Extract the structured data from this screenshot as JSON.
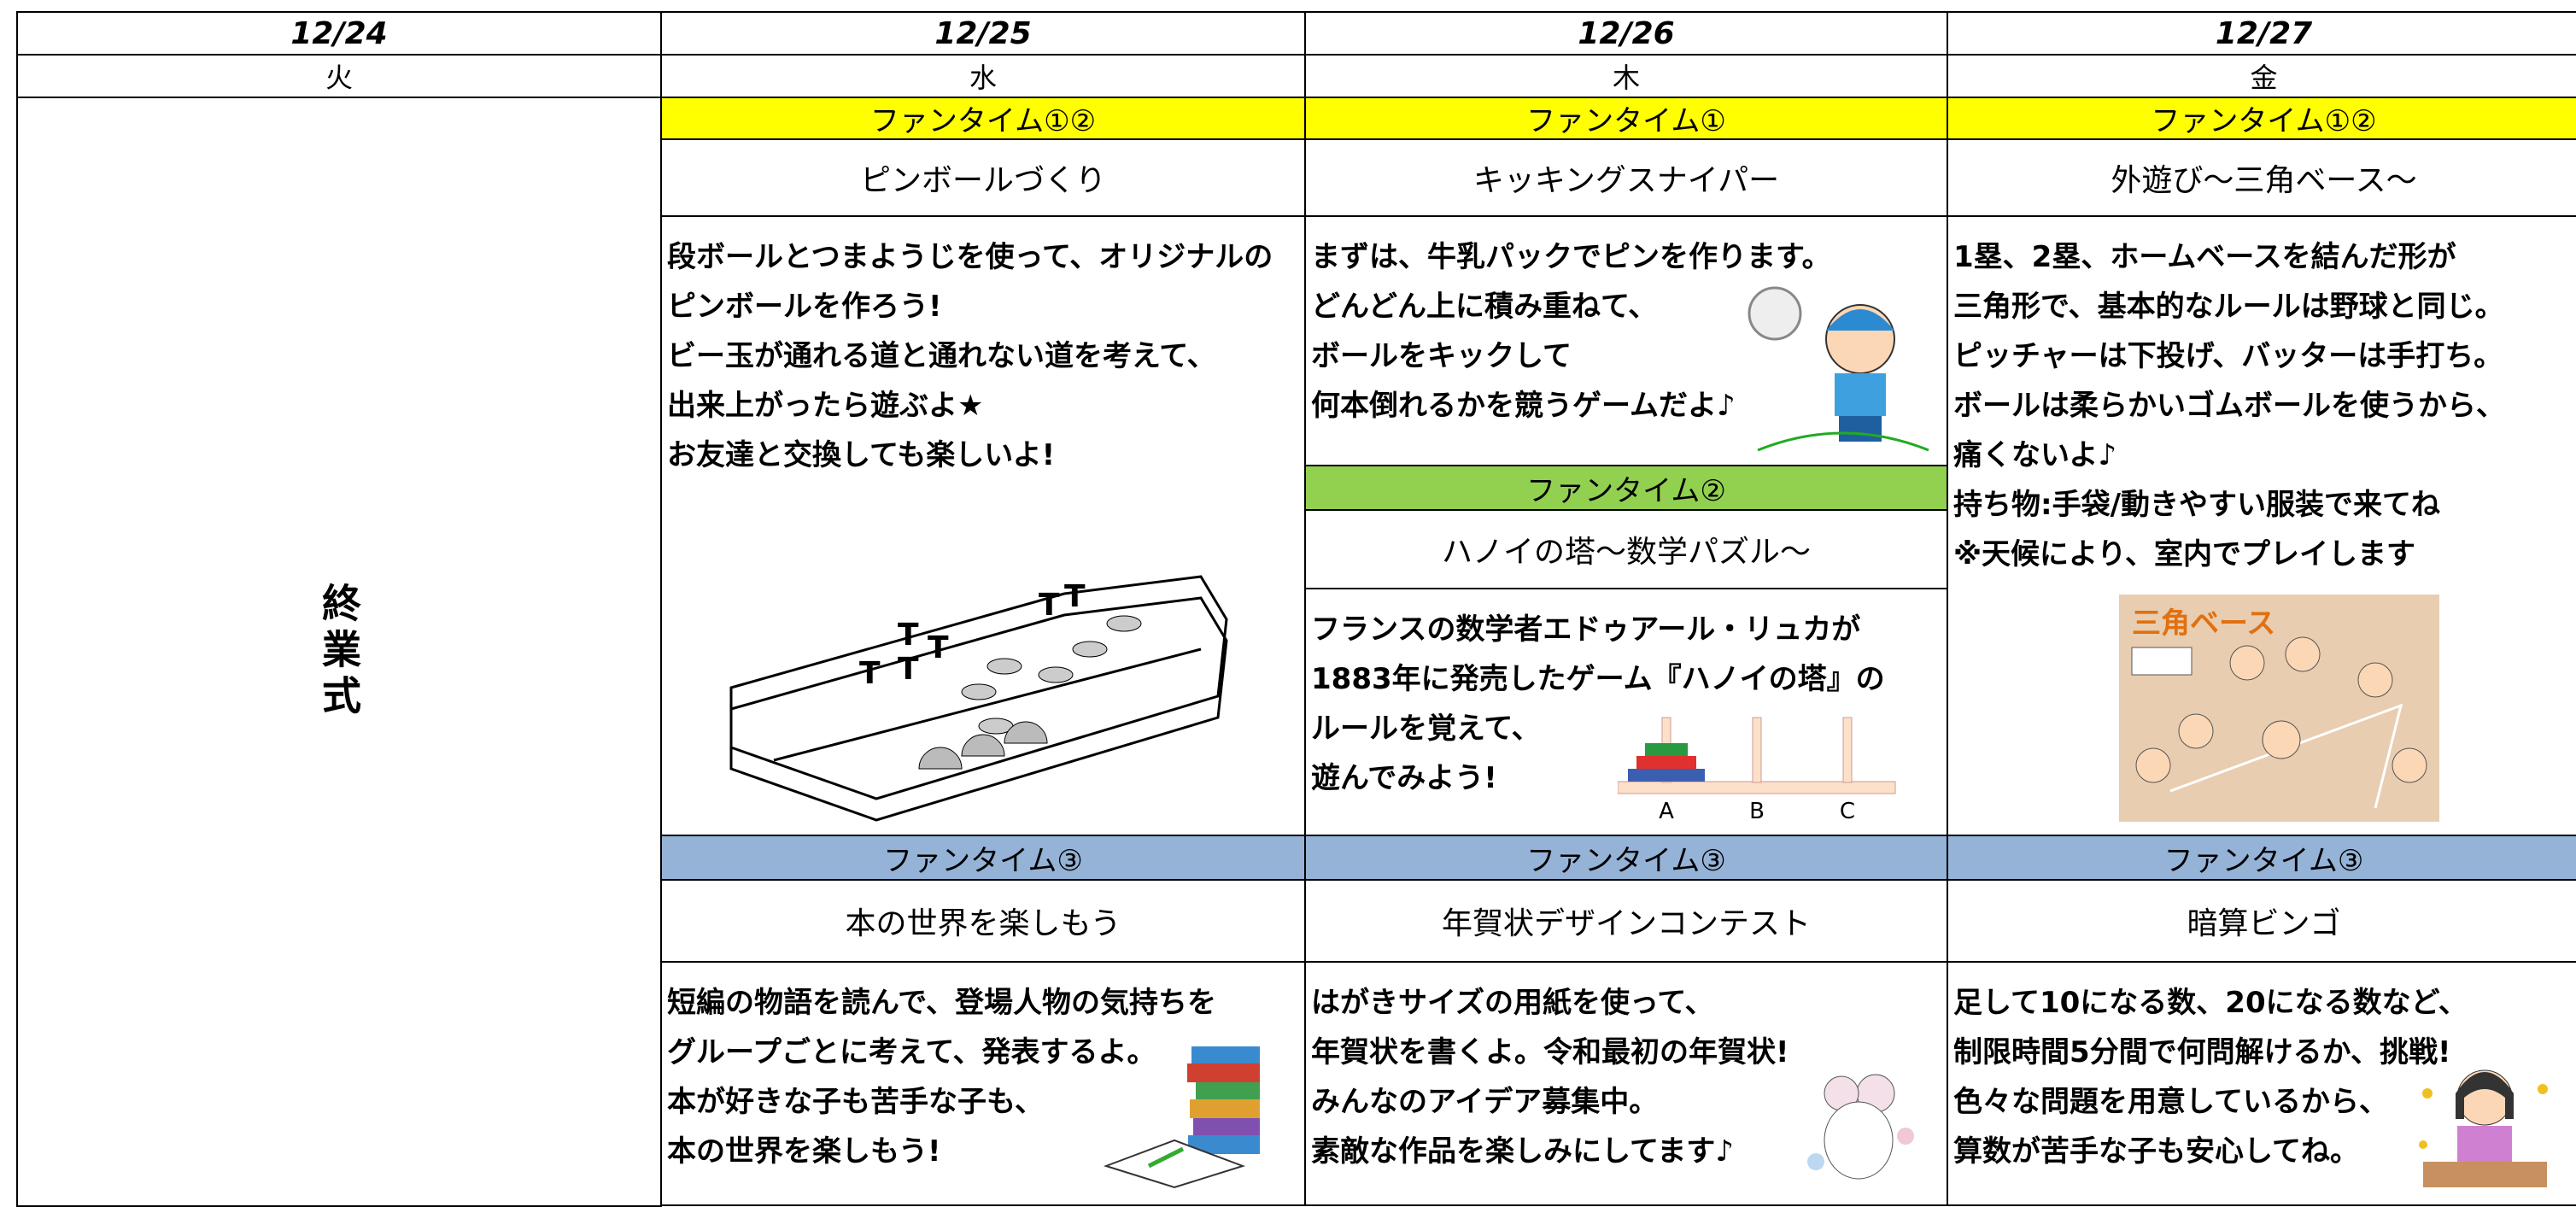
{
  "columns": [
    {
      "date": "12/24",
      "day": "火",
      "event": "終業式"
    },
    {
      "date": "12/25",
      "day": "水",
      "sessions": [
        {
          "label": "ファンタイム①②",
          "title": "ピンボールづくり",
          "lines": [
            "段ボールとつまようじを使って、オリジナルの",
            "ピンボールを作ろう!",
            "ビー玉が通れる道と通れない道を考えて、",
            "出来上がったら遊ぶよ★",
            "お友達と交換しても楽しいよ!"
          ]
        },
        {
          "label": "ファンタイム③",
          "title": "本の世界を楽しもう",
          "lines": [
            "短編の物語を読んで、登場人物の気持ちを",
            "グループごとに考えて、発表するよ。",
            "本が好きな子も苦手な子も、",
            "本の世界を楽しもう!"
          ]
        }
      ]
    },
    {
      "date": "12/26",
      "day": "木",
      "sessions": [
        {
          "label": "ファンタイム①",
          "title": "キッキングスナイパー",
          "lines": [
            "まずは、牛乳パックでピンを作ります。",
            "どんどん上に積み重ねて、",
            "ボールをキックして",
            "何本倒れるかを競うゲームだよ♪"
          ]
        },
        {
          "label": "ファンタイム②",
          "title": "ハノイの塔～数学パズル～",
          "lines": [
            "フランスの数学者エドゥアール・リュカが",
            "1883年に発売したゲーム『ハノイの塔』の",
            "ルールを覚えて、",
            "遊んでみよう!"
          ]
        },
        {
          "label": "ファンタイム③",
          "title": "年賀状デザインコンテスト",
          "lines": [
            "はがきサイズの用紙を使って、",
            "年賀状を書くよ。令和最初の年賀状!",
            "みんなのアイデア募集中。",
            "素敵な作品を楽しみにしてます♪"
          ]
        }
      ]
    },
    {
      "date": "12/27",
      "day": "金",
      "sessions": [
        {
          "label": "ファンタイム①②",
          "title": "外遊び～三角ベース～",
          "lines": [
            "1塁、2塁、ホームベースを結んだ形が",
            "三角形で、基本的なルールは野球と同じ。",
            "ピッチャーは下投げ、バッターは手打ち。",
            "ボールは柔らかいゴムボールを使うから、",
            "痛くないよ♪",
            "持ち物:手袋/動きやすい服装で来てね",
            "※天候により、室内でプレイします"
          ]
        },
        {
          "label": "ファンタイム③",
          "title": "暗算ビンゴ",
          "lines": [
            "足して10になる数、20になる数など、",
            "制限時間5分間で何問解けるか、挑戦!",
            "色々な問題を用意しているから、",
            "算数が苦手な子も安心してね。"
          ]
        }
      ]
    }
  ],
  "images": {
    "hanoi_labels": [
      "A",
      "B",
      "C"
    ],
    "sankaku_title": "三角ベース"
  }
}
